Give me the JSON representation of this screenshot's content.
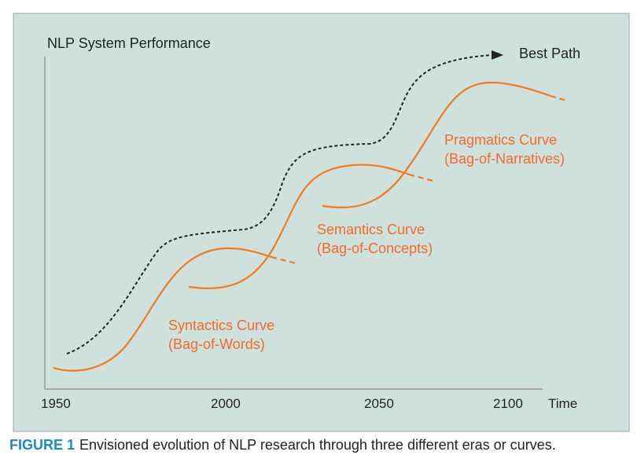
{
  "header": {
    "title": "NLP System Performance"
  },
  "axis": {
    "ticks": [
      "1950",
      "2000",
      "2050",
      "2100"
    ],
    "x_label": "Time"
  },
  "best_path": {
    "label": "Best Path"
  },
  "curves": [
    {
      "name": "Syntactics Curve",
      "subtitle": "(Bag-of-Words)"
    },
    {
      "name": "Semantics Curve",
      "subtitle": "(Bag-of-Concepts)"
    },
    {
      "name": "Pragmatics Curve",
      "subtitle": "(Bag-of-Narratives)"
    }
  ],
  "caption": {
    "label": "FIGURE 1",
    "text": "Envisioned evolution of NLP research through three different eras or curves."
  }
}
